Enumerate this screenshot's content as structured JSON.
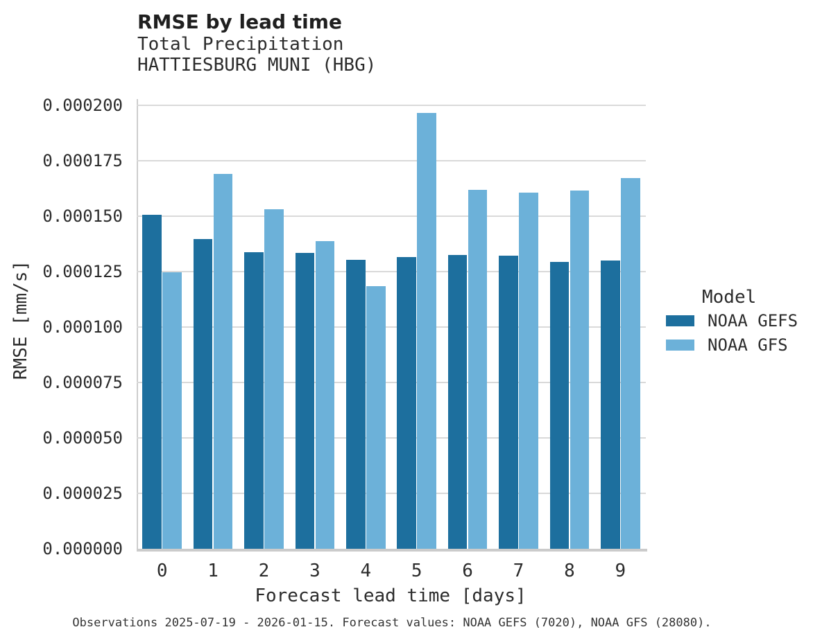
{
  "figure": {
    "caption": "Observations 2025-07-19 - 2026-01-15. Forecast values: NOAA GEFS (7020), NOAA GFS (28080)."
  },
  "chart_data": {
    "type": "bar",
    "title": "RMSE by lead time",
    "subtitle": [
      "Total Precipitation",
      "HATTIESBURG MUNI (HBG)"
    ],
    "xlabel": "Forecast lead time [days]",
    "ylabel": "RMSE [mm/s]",
    "categories": [
      "0",
      "1",
      "2",
      "3",
      "4",
      "5",
      "6",
      "7",
      "8",
      "9"
    ],
    "series": [
      {
        "name": "NOAA GEFS",
        "color": "#1d6f9e",
        "values": [
          0.0001507,
          0.0001396,
          0.0001338,
          0.0001333,
          0.0001304,
          0.0001317,
          0.0001325,
          0.0001322,
          0.0001295,
          0.0001301
        ]
      },
      {
        "name": "NOAA GFS",
        "color": "#6cb1d9",
        "values": [
          0.0001246,
          0.0001692,
          0.0001531,
          0.0001388,
          0.0001185,
          0.0001967,
          0.000162,
          0.0001606,
          0.0001617,
          0.0001671
        ]
      }
    ],
    "ylim": [
      0,
      0.0002
    ],
    "ytick_step": 2.5e-05,
    "ytick_labels": [
      "0.000000",
      "0.000025",
      "0.000050",
      "0.000075",
      "0.000100",
      "0.000125",
      "0.000150",
      "0.000175",
      "0.000200"
    ],
    "legend_title": "Model",
    "legend_position": "right",
    "grid": true,
    "grid_color": "#d9d9d9",
    "axis_line_color": "#cdcdcd"
  }
}
